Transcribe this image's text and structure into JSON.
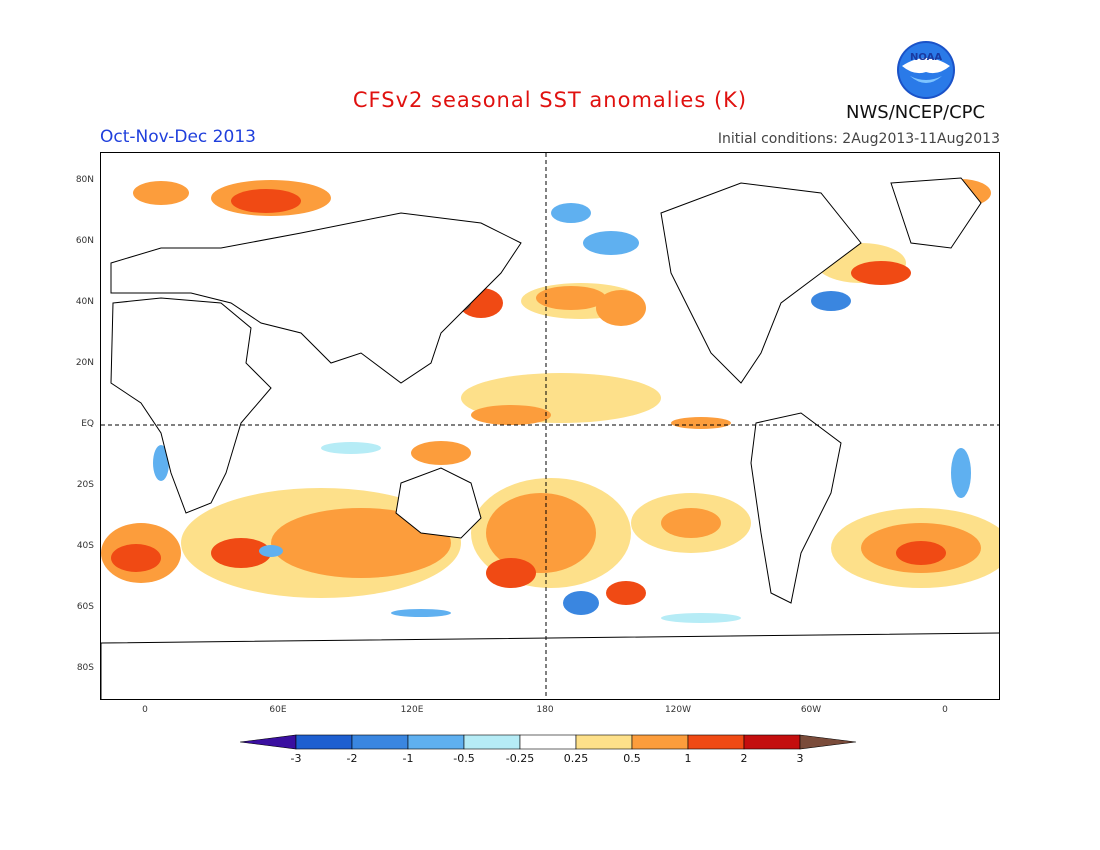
{
  "title": "CFSv2 seasonal SST anomalies (K)",
  "season": "Oct-Nov-Dec 2013",
  "initial_conditions": "Initial conditions: 2Aug2013-11Aug2013",
  "agency": "NWS/NCEP/CPC",
  "logo_text": "NOAA",
  "lat_labels": [
    "80N",
    "60N",
    "40N",
    "20N",
    "EQ",
    "20S",
    "40S",
    "60S",
    "80S"
  ],
  "lon_labels": [
    "0",
    "60E",
    "120E",
    "180",
    "120W",
    "60W",
    "0"
  ],
  "colorbar": {
    "labels": [
      "-3",
      "-2",
      "-1",
      "-0.5",
      "-0.25",
      "0.25",
      "0.5",
      "1",
      "2",
      "3"
    ],
    "colors": [
      "#3a0fa0",
      "#1e5fd0",
      "#3a86e0",
      "#5fb0f0",
      "#b6ecf6",
      "#ffffff",
      "#fde08a",
      "#fc9d3c",
      "#f04a14",
      "#c40e0e",
      "#7a4b3a"
    ]
  }
}
